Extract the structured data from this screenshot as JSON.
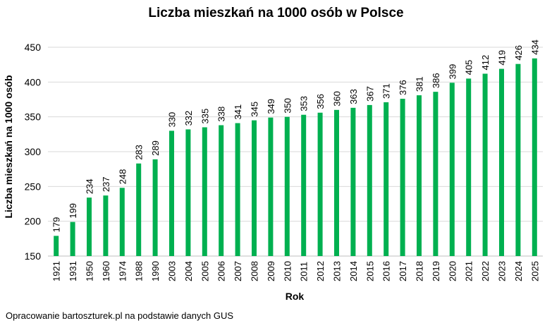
{
  "chart_data": {
    "type": "bar",
    "title": "Liczba mieszkań na 1000 osób w Polsce",
    "xlabel": "Rok",
    "ylabel": "Liczba mieszkań na 1000 osób",
    "ylim": [
      150,
      450
    ],
    "yticks": [
      150,
      200,
      250,
      300,
      350,
      400,
      450
    ],
    "grid": true,
    "bar_color": "#00B050",
    "categories": [
      "1921",
      "1931",
      "1950",
      "1960",
      "1974",
      "1988",
      "1990",
      "2003",
      "2004",
      "2005",
      "2006",
      "2007",
      "2008",
      "2009",
      "2010",
      "2011",
      "2012",
      "2013",
      "2014",
      "2015",
      "2016",
      "2017",
      "2018",
      "2019",
      "2020",
      "2021",
      "2022",
      "2023",
      "2024",
      "2025"
    ],
    "values": [
      179,
      199,
      234,
      237,
      248,
      283,
      289,
      330,
      332,
      335,
      338,
      341,
      345,
      349,
      350,
      353,
      356,
      360,
      363,
      367,
      371,
      376,
      381,
      386,
      399,
      405,
      412,
      419,
      426,
      434
    ]
  },
  "footer": "Opracowanie bartoszturek.pl na podstawie danych GUS"
}
